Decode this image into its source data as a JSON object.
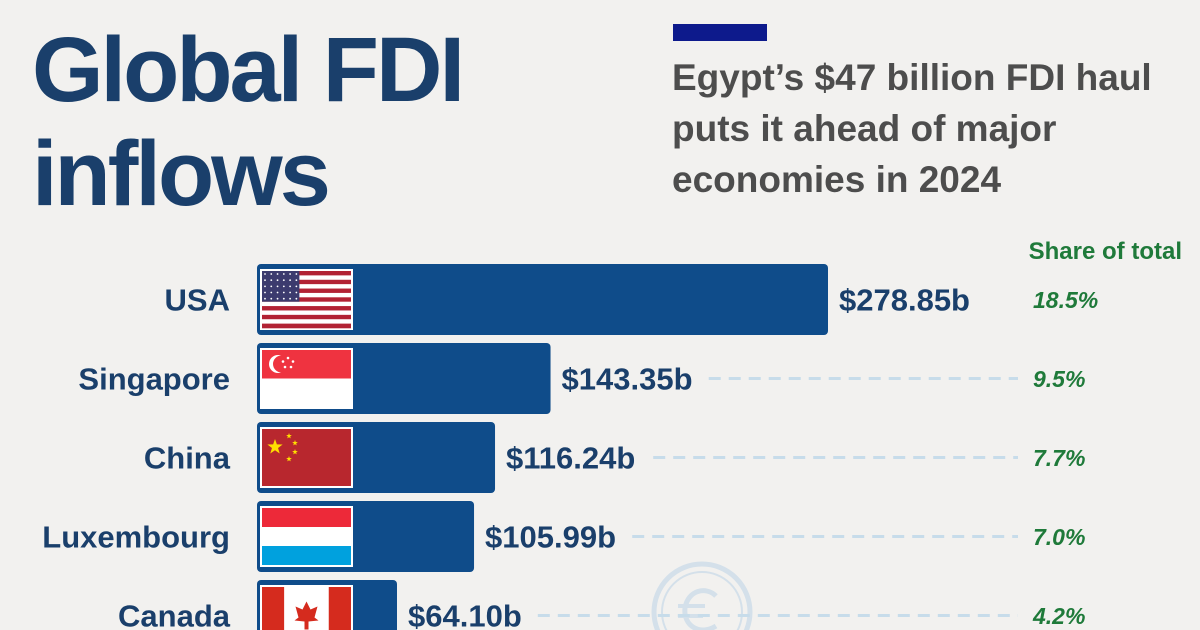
{
  "header": {
    "title_line1": "Global FDI",
    "title_line2": "inflows",
    "subtitle": "Egypt’s $47 billion FDI haul puts it ahead of major economies in 2024"
  },
  "colors": {
    "bar": "#0f4c8a",
    "title": "#1a3f6b",
    "share": "#1f7a3a",
    "accent": "#0d1a8c",
    "leader": "#c7dcea"
  },
  "chart_data": {
    "type": "bar",
    "orientation": "horizontal",
    "title": "Global FDI inflows",
    "share_header": "Share of total",
    "categories": [
      "USA",
      "Singapore",
      "China",
      "Luxembourg",
      "Canada"
    ],
    "values": [
      278.85,
      143.35,
      116.24,
      105.99,
      64.1
    ],
    "value_labels": [
      "$278.85b",
      "$143.35b",
      "$116.24b",
      "$105.99b",
      "$64.10b"
    ],
    "shares": [
      "18.5%",
      "9.5%",
      "7.7%",
      "7.0%",
      "4.2%"
    ],
    "flags": [
      "usa-flag-icon",
      "singapore-flag-icon",
      "china-flag-icon",
      "luxembourg-flag-icon",
      "canada-flag-icon"
    ],
    "unit": "USD billions",
    "grid": false,
    "legend": "none"
  }
}
